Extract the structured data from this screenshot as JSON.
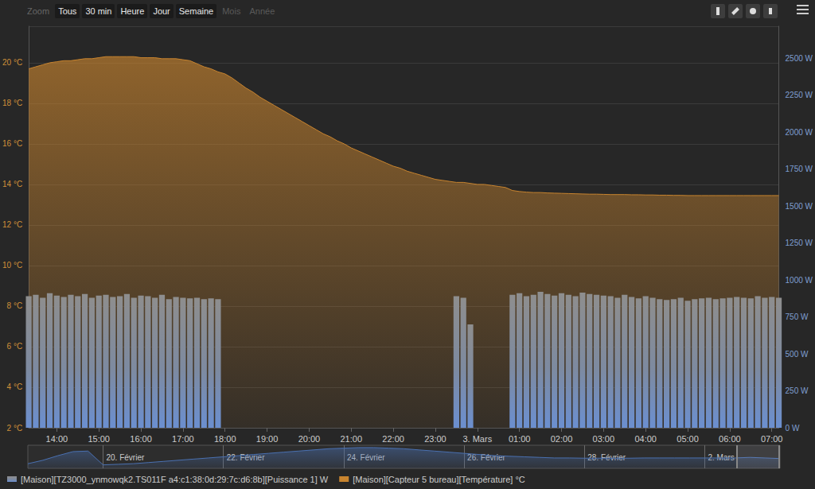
{
  "toolbar": {
    "label": "Zoom",
    "buttons": [
      {
        "text": "Tous",
        "enabled": true
      },
      {
        "text": "30 min",
        "enabled": true
      },
      {
        "text": "Heure",
        "enabled": true
      },
      {
        "text": "Jour",
        "enabled": true
      },
      {
        "text": "Semaine",
        "enabled": true
      },
      {
        "text": "Mois",
        "enabled": false
      },
      {
        "text": "Année",
        "enabled": false
      }
    ]
  },
  "chart_data": [
    {
      "type": "line",
      "categories": [
        null,
        null,
        null,
        null,
        "14:00",
        null,
        null,
        null,
        null,
        null,
        "15:00",
        null,
        null,
        null,
        null,
        null,
        "16:00",
        null,
        null,
        null,
        null,
        null,
        "17:00",
        null,
        null,
        null,
        null,
        null,
        "18:00",
        null,
        null,
        null,
        null,
        null,
        "19:00",
        null,
        null,
        null,
        null,
        null,
        "20:00",
        null,
        null,
        null,
        null,
        null,
        "21:00",
        null,
        null,
        null,
        null,
        null,
        "22:00",
        null,
        null,
        null,
        null,
        null,
        "23:00",
        null,
        null,
        null,
        null,
        null,
        "3. Mars",
        null,
        null,
        null,
        null,
        null,
        "01:00",
        null,
        null,
        null,
        null,
        null,
        "02:00",
        null,
        null,
        null,
        null,
        null,
        "03:00",
        null,
        null,
        null,
        null,
        null,
        "04:00",
        null,
        null,
        null,
        null,
        null,
        "05:00",
        null,
        null,
        null,
        null,
        null,
        "06:00",
        null,
        null,
        null,
        null,
        null,
        "07:00",
        null
      ],
      "series": [
        {
          "name": "[Maison][TZ3000_ynmowqk2.TS011F a4:c1:38:0d:29:7c:d6:8b][Puissance 1] W",
          "type": "bar",
          "axis": "y2",
          "color": "#6b8fd0",
          "values": [
            890,
            900,
            880,
            910,
            895,
            885,
            900,
            890,
            905,
            880,
            895,
            900,
            885,
            890,
            905,
            880,
            895,
            890,
            880,
            900,
            870,
            885,
            880,
            875,
            880,
            870,
            875,
            870,
            0,
            0,
            0,
            0,
            0,
            0,
            0,
            0,
            0,
            0,
            0,
            0,
            0,
            0,
            0,
            0,
            0,
            0,
            0,
            0,
            0,
            0,
            0,
            0,
            0,
            0,
            0,
            0,
            0,
            0,
            0,
            0,
            0,
            890,
            880,
            700,
            0,
            0,
            0,
            0,
            0,
            900,
            910,
            890,
            900,
            920,
            905,
            895,
            910,
            900,
            890,
            915,
            905,
            900,
            895,
            890,
            880,
            900,
            885,
            875,
            890,
            880,
            870,
            865,
            870,
            880,
            860,
            870,
            875,
            880,
            870,
            875,
            880,
            885,
            880,
            875,
            890,
            880,
            885,
            880
          ]
        },
        {
          "name": "[Maison][Capteur 5 bureau][Température] °C",
          "type": "area",
          "color": "#c8842f",
          "values": [
            19.7,
            19.8,
            19.9,
            20.0,
            20.05,
            20.1,
            20.1,
            20.15,
            20.2,
            20.2,
            20.25,
            20.3,
            20.3,
            20.3,
            20.3,
            20.3,
            20.25,
            20.25,
            20.25,
            20.2,
            20.2,
            20.2,
            20.15,
            20.1,
            19.95,
            19.8,
            19.7,
            19.55,
            19.45,
            19.25,
            19.0,
            18.75,
            18.55,
            18.3,
            18.1,
            17.9,
            17.7,
            17.5,
            17.3,
            17.1,
            16.9,
            16.7,
            16.5,
            16.35,
            16.15,
            16.0,
            15.8,
            15.65,
            15.5,
            15.35,
            15.2,
            15.05,
            14.9,
            14.8,
            14.65,
            14.55,
            14.45,
            14.35,
            14.25,
            14.2,
            14.15,
            14.1,
            14.1,
            14.05,
            14.0,
            14.0,
            13.95,
            13.9,
            13.85,
            13.7,
            13.65,
            13.62,
            13.6,
            13.6,
            13.58,
            13.57,
            13.56,
            13.55,
            13.54,
            13.53,
            13.52,
            13.52,
            13.51,
            13.5,
            13.5,
            13.5,
            13.49,
            13.49,
            13.48,
            13.48,
            13.47,
            13.47,
            13.46,
            13.46,
            13.45,
            13.45,
            13.45,
            13.45,
            13.45,
            13.45,
            13.45,
            13.45,
            13.45,
            13.45,
            13.45,
            13.45,
            13.45,
            13.45
          ]
        }
      ],
      "ylim": [
        2,
        21.8
      ],
      "yticks": [
        {
          "value": 2,
          "label": "2 °C"
        },
        {
          "value": 4,
          "label": "4 °C"
        },
        {
          "value": 6,
          "label": "6 °C"
        },
        {
          "value": 8,
          "label": "8 °C"
        },
        {
          "value": 10,
          "label": "10 °C"
        },
        {
          "value": 12,
          "label": "12 °C"
        },
        {
          "value": 14,
          "label": "14 °C"
        },
        {
          "value": 16,
          "label": "16 °C"
        },
        {
          "value": 18,
          "label": "18 °C"
        },
        {
          "value": 20,
          "label": "20 °C"
        }
      ],
      "y2lim": [
        0,
        2717
      ],
      "y2ticks": [
        {
          "value": 0,
          "label": "0 W"
        },
        {
          "value": 250,
          "label": "250 W"
        },
        {
          "value": 500,
          "label": "500 W"
        },
        {
          "value": 750,
          "label": "750 W"
        },
        {
          "value": 1000,
          "label": "1000 W"
        },
        {
          "value": 1250,
          "label": "1250 W"
        },
        {
          "value": 1500,
          "label": "1500 W"
        },
        {
          "value": 1750,
          "label": "1750 W"
        },
        {
          "value": 2000,
          "label": "2000 W"
        },
        {
          "value": 2250,
          "label": "2250 W"
        },
        {
          "value": 2500,
          "label": "2500 W"
        }
      ],
      "grid": true,
      "legend": "bottom-left"
    },
    {
      "type": "area",
      "categories": [
        null,
        null,
        null,
        null,
        null,
        "20. Février",
        null,
        null,
        null,
        null,
        null,
        null,
        null,
        "22. Février",
        null,
        null,
        null,
        null,
        null,
        null,
        null,
        "24. Février",
        null,
        null,
        null,
        null,
        null,
        null,
        null,
        "26. Février",
        null,
        null,
        null,
        null,
        null,
        null,
        null,
        "28. Février",
        null,
        null,
        null,
        null,
        null,
        null,
        null,
        "2. Mars",
        null,
        null,
        null,
        null,
        null
      ],
      "values": [
        9,
        12,
        16,
        19.5,
        20,
        8,
        8.5,
        9,
        10,
        11,
        12,
        13,
        14,
        15,
        16,
        17,
        18,
        19,
        20,
        21,
        22,
        22.5,
        23,
        23,
        22.5,
        22,
        21,
        20,
        19,
        18,
        17,
        16,
        15.5,
        15,
        14.5,
        14,
        14,
        13.8,
        13.8,
        13.8,
        13.8,
        14,
        14,
        14,
        14,
        14,
        14,
        14,
        14.5,
        14,
        13.5
      ],
      "color": "#4a70b0",
      "ylim": [
        5,
        25
      ],
      "tick_labels": "x"
    }
  ]
}
